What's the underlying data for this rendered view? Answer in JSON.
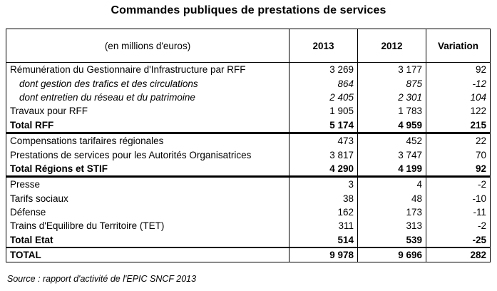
{
  "title": "Commandes publiques de prestations de services",
  "header": {
    "unit": "(en millions d'euros)",
    "col_2013": "2013",
    "col_2012": "2012",
    "col_variation": "Variation"
  },
  "rows": [
    {
      "label": "Rémunération du Gestionnaire d'Infrastructure par RFF",
      "v2013": "3 269",
      "v2012": "3 177",
      "var": "92"
    },
    {
      "label": "dont gestion des trafics et des circulations",
      "v2013": "864",
      "v2012": "875",
      "var": "-12"
    },
    {
      "label": "dont entretien du réseau et du patrimoine",
      "v2013": "2 405",
      "v2012": "2 301",
      "var": "104"
    },
    {
      "label": "Travaux pour RFF",
      "v2013": "1 905",
      "v2012": "1 783",
      "var": "122"
    },
    {
      "label": "Total RFF",
      "v2013": "5 174",
      "v2012": "4 959",
      "var": "215"
    },
    {
      "label": "Compensations tarifaires régionales",
      "v2013": "473",
      "v2012": "452",
      "var": "22"
    },
    {
      "label": "Prestations de services pour les Autorités Organisatrices",
      "v2013": "3 817",
      "v2012": "3 747",
      "var": "70"
    },
    {
      "label": "Total Régions et STIF",
      "v2013": "4 290",
      "v2012": "4 199",
      "var": "92"
    },
    {
      "label": "Presse",
      "v2013": "3",
      "v2012": "4",
      "var": "-2"
    },
    {
      "label": "Tarifs sociaux",
      "v2013": "38",
      "v2012": "48",
      "var": "-10"
    },
    {
      "label": "Défense",
      "v2013": "162",
      "v2012": "173",
      "var": "-11"
    },
    {
      "label": "Trains d'Equilibre du Territoire (TET)",
      "v2013": "311",
      "v2012": "313",
      "var": "-2"
    },
    {
      "label": "Total Etat",
      "v2013": "514",
      "v2012": "539",
      "var": "-25"
    },
    {
      "label": "TOTAL",
      "v2013": "9 978",
      "v2012": "9 696",
      "var": "282"
    }
  ],
  "source": "Source : rapport d'activité de l'EPIC SNCF 2013"
}
